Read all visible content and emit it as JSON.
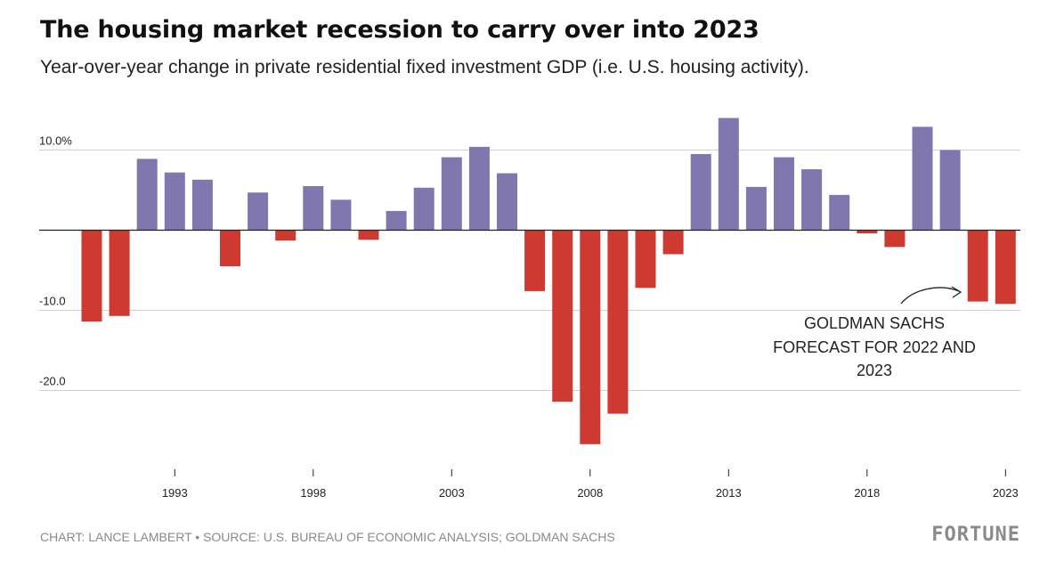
{
  "chart_data": {
    "type": "bar",
    "title": "The housing market recession to carry over into 2023",
    "subtitle": "Year-over-year change in private residential fixed investment GDP (i.e. U.S. housing activity).",
    "x": [
      1990,
      1991,
      1992,
      1993,
      1994,
      1995,
      1996,
      1997,
      1998,
      1999,
      2000,
      2001,
      2002,
      2003,
      2004,
      2005,
      2006,
      2007,
      2008,
      2009,
      2010,
      2011,
      2012,
      2013,
      2014,
      2015,
      2016,
      2017,
      2018,
      2019,
      2020,
      2021,
      2022,
      2023
    ],
    "values": [
      -11.4,
      -10.7,
      8.9,
      7.2,
      6.3,
      -4.5,
      4.7,
      -1.3,
      5.5,
      3.8,
      -1.2,
      2.4,
      5.3,
      9.1,
      10.4,
      7.1,
      -7.6,
      -21.4,
      -26.7,
      -22.9,
      -7.2,
      -3.0,
      9.5,
      14.0,
      5.4,
      9.1,
      7.6,
      4.4,
      -0.4,
      -2.1,
      12.9,
      10.0,
      -8.9,
      -9.2
    ],
    "positive_color": "#7f77ae",
    "negative_color": "#cf3a30",
    "ylim": [
      -29,
      15
    ],
    "yticks": [
      10,
      -10,
      -20
    ],
    "ytick_labels": [
      "10.0%",
      "-10.0",
      "-20.0"
    ],
    "xticks": [
      1993,
      1998,
      2003,
      2008,
      2013,
      2018,
      2023
    ],
    "xtick_labels": [
      "1993",
      "1998",
      "2003",
      "2008",
      "2013",
      "2018",
      "2023"
    ],
    "annotation": [
      "GOLDMAN SACHS",
      "FORECAST FOR 2022 AND",
      "2023"
    ],
    "xlabel": "",
    "ylabel": ""
  },
  "footer": {
    "credit": "CHART: LANCE LAMBERT • SOURCE: U.S. BUREAU OF ECONOMIC ANALYSIS; GOLDMAN SACHS",
    "brand": "FORTUNE"
  }
}
